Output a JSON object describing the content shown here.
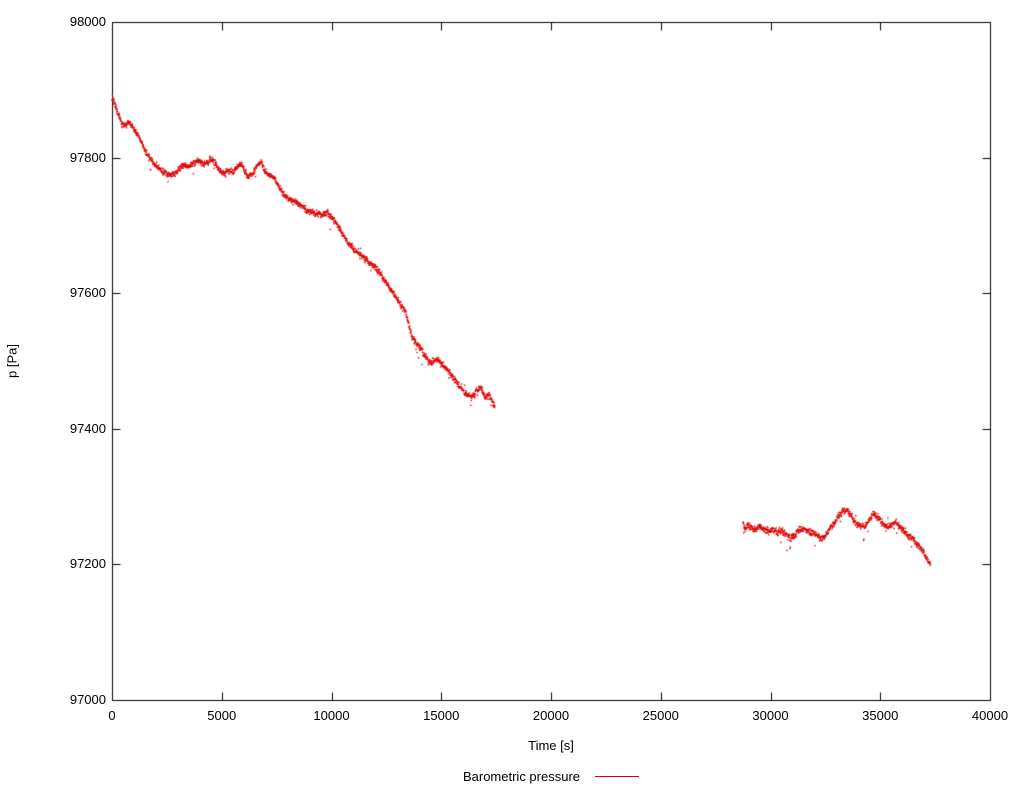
{
  "page": {
    "background": "#ffffff"
  },
  "chart_data": {
    "type": "scatter",
    "title": "",
    "xlabel": "Time [s]",
    "ylabel": "p [Pa]",
    "xlim": [
      0,
      40000
    ],
    "ylim": [
      97000,
      98000
    ],
    "x_ticks": [
      0,
      5000,
      10000,
      15000,
      20000,
      25000,
      30000,
      35000,
      40000
    ],
    "y_ticks": [
      97000,
      97200,
      97400,
      97600,
      97800,
      98000
    ],
    "grid": false,
    "axis_color": "#000000",
    "legend_position": "bottom-center",
    "series": [
      {
        "name": "Barometric pressure",
        "color": "#dd0000",
        "marker": "dot",
        "noise_amplitude_pa": 5,
        "outlier_probability": 0.02,
        "outlier_max_pa": 20,
        "sample_interval_s": 10,
        "segments": [
          {
            "points": [
              [
                0,
                97888
              ],
              [
                150,
                97878
              ],
              [
                300,
                97862
              ],
              [
                450,
                97850
              ],
              [
                600,
                97846
              ],
              [
                750,
                97852
              ],
              [
                900,
                97847
              ],
              [
                1050,
                97840
              ],
              [
                1200,
                97832
              ],
              [
                1350,
                97822
              ],
              [
                1500,
                97810
              ],
              [
                1700,
                97800
              ],
              [
                1900,
                97792
              ],
              [
                2100,
                97786
              ],
              [
                2300,
                97780
              ],
              [
                2500,
                97776
              ],
              [
                2700,
                97774
              ],
              [
                2900,
                97778
              ],
              [
                3100,
                97785
              ],
              [
                3300,
                97788
              ],
              [
                3500,
                97786
              ],
              [
                3700,
                97792
              ],
              [
                3900,
                97796
              ],
              [
                4100,
                97790
              ],
              [
                4300,
                97792
              ],
              [
                4500,
                97798
              ],
              [
                4700,
                97792
              ],
              [
                4900,
                97780
              ],
              [
                5100,
                97775
              ],
              [
                5300,
                97782
              ],
              [
                5500,
                97777
              ],
              [
                5700,
                97786
              ],
              [
                5900,
                97793
              ],
              [
                6000,
                97782
              ],
              [
                6200,
                97772
              ],
              [
                6400,
                97776
              ],
              [
                6600,
                97788
              ],
              [
                6800,
                97794
              ],
              [
                6900,
                97786
              ],
              [
                7000,
                97778
              ],
              [
                7200,
                97774
              ],
              [
                7400,
                97770
              ],
              [
                7600,
                97758
              ],
              [
                7800,
                97746
              ],
              [
                8000,
                97740
              ],
              [
                8200,
                97736
              ],
              [
                8400,
                97734
              ],
              [
                8600,
                97729
              ],
              [
                8800,
                97724
              ],
              [
                9000,
                97721
              ],
              [
                9200,
                97719
              ],
              [
                9400,
                97717
              ],
              [
                9600,
                97715
              ],
              [
                9800,
                97719
              ],
              [
                10000,
                97712
              ],
              [
                10200,
                97704
              ],
              [
                10400,
                97694
              ],
              [
                10600,
                97681
              ],
              [
                10800,
                97672
              ],
              [
                11000,
                97665
              ],
              [
                11200,
                97659
              ],
              [
                11400,
                97654
              ],
              [
                11600,
                97649
              ],
              [
                11800,
                97643
              ],
              [
                12000,
                97638
              ],
              [
                12200,
                97630
              ],
              [
                12400,
                97620
              ],
              [
                12600,
                97611
              ],
              [
                12800,
                97601
              ],
              [
                13000,
                97591
              ],
              [
                13200,
                97581
              ],
              [
                13400,
                97571
              ],
              [
                13500,
                97556
              ],
              [
                13650,
                97536
              ],
              [
                13800,
                97529
              ],
              [
                14000,
                97521
              ],
              [
                14200,
                97511
              ],
              [
                14400,
                97501
              ],
              [
                14600,
                97498
              ],
              [
                14800,
                97501
              ],
              [
                15000,
                97496
              ],
              [
                15200,
                97491
              ],
              [
                15400,
                97481
              ],
              [
                15600,
                97473
              ],
              [
                15800,
                97465
              ],
              [
                16000,
                97456
              ],
              [
                16200,
                97450
              ],
              [
                16400,
                97447
              ],
              [
                16600,
                97455
              ],
              [
                16800,
                97461
              ],
              [
                17000,
                97446
              ],
              [
                17150,
                97450
              ],
              [
                17300,
                97441
              ],
              [
                17450,
                97433
              ]
            ]
          },
          {
            "points": [
              [
                28750,
                97262
              ],
              [
                28850,
                97251
              ],
              [
                28950,
                97258
              ],
              [
                29100,
                97255
              ],
              [
                29300,
                97251
              ],
              [
                29500,
                97256
              ],
              [
                29700,
                97252
              ],
              [
                29900,
                97249
              ],
              [
                30100,
                97252
              ],
              [
                30300,
                97247
              ],
              [
                30500,
                97250
              ],
              [
                30700,
                97244
              ],
              [
                30900,
                97239
              ],
              [
                31100,
                97242
              ],
              [
                31300,
                97250
              ],
              [
                31500,
                97252
              ],
              [
                31700,
                97249
              ],
              [
                31900,
                97247
              ],
              [
                32100,
                97244
              ],
              [
                32300,
                97237
              ],
              [
                32500,
                97242
              ],
              [
                32700,
                97252
              ],
              [
                32900,
                97261
              ],
              [
                33100,
                97271
              ],
              [
                33300,
                97279
              ],
              [
                33500,
                97280
              ],
              [
                33700,
                97271
              ],
              [
                33900,
                97261
              ],
              [
                34100,
                97257
              ],
              [
                34300,
                97254
              ],
              [
                34500,
                97265
              ],
              [
                34700,
                97274
              ],
              [
                34900,
                97269
              ],
              [
                35100,
                97261
              ],
              [
                35300,
                97255
              ],
              [
                35500,
                97258
              ],
              [
                35700,
                97263
              ],
              [
                35900,
                97254
              ],
              [
                36100,
                97249
              ],
              [
                36300,
                97241
              ],
              [
                36500,
                97237
              ],
              [
                36700,
                97229
              ],
              [
                36900,
                97220
              ],
              [
                37100,
                97210
              ],
              [
                37300,
                97199
              ]
            ]
          }
        ]
      }
    ]
  }
}
